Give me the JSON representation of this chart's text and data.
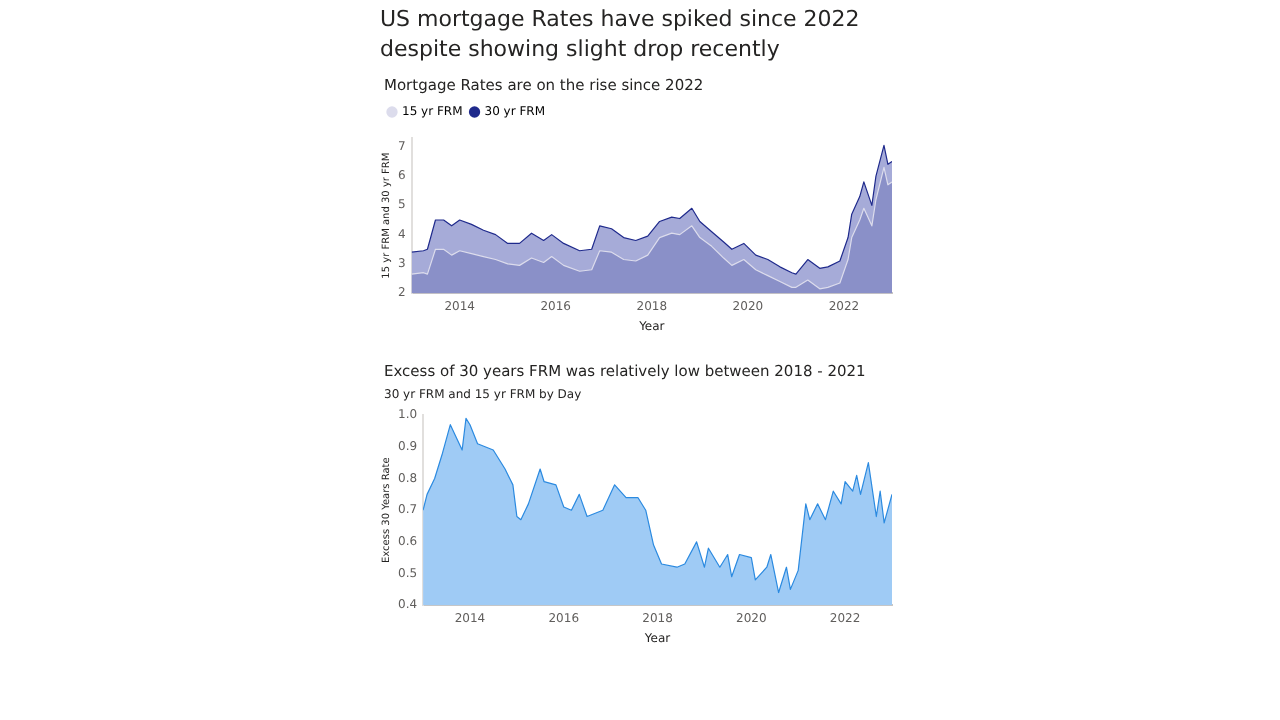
{
  "chart_data": [
    {
      "type": "area",
      "title": "US mortgage Rates have spiked since 2022 despite showing slight drop recently",
      "subtitle": "Mortgage Rates are on the rise since 2022",
      "xlabel": "Year",
      "ylabel": "15 yr FRM and 30 yr FRM",
      "x": [
        "2013-01",
        "2013-04",
        "2013-05",
        "2013-07",
        "2013-09",
        "2013-11",
        "2014-01",
        "2014-04",
        "2014-07",
        "2014-10",
        "2015-01",
        "2015-04",
        "2015-07",
        "2015-10",
        "2015-12",
        "2016-03",
        "2016-07",
        "2016-10",
        "2016-12",
        "2017-03",
        "2017-06",
        "2017-09",
        "2017-12",
        "2018-03",
        "2018-06",
        "2018-08",
        "2018-11",
        "2019-01",
        "2019-04",
        "2019-07",
        "2019-09",
        "2019-12",
        "2020-03",
        "2020-06",
        "2020-09",
        "2020-12",
        "2021-01",
        "2021-04",
        "2021-07",
        "2021-09",
        "2021-12",
        "2022-02",
        "2022-03",
        "2022-05",
        "2022-06",
        "2022-08",
        "2022-09",
        "2022-11",
        "2022-12",
        "2023-01"
      ],
      "series": [
        {
          "name": "15 yr FRM",
          "color": "#dcdcec",
          "values": [
            2.65,
            2.7,
            2.65,
            3.5,
            3.5,
            3.3,
            3.45,
            3.35,
            3.25,
            3.15,
            3.0,
            2.95,
            3.2,
            3.05,
            3.25,
            2.95,
            2.75,
            2.8,
            3.45,
            3.4,
            3.15,
            3.1,
            3.3,
            3.9,
            4.05,
            4.0,
            4.3,
            3.9,
            3.6,
            3.2,
            2.95,
            3.15,
            2.8,
            2.6,
            2.4,
            2.2,
            2.2,
            2.45,
            2.15,
            2.2,
            2.35,
            3.15,
            3.9,
            4.5,
            4.9,
            4.3,
            5.2,
            6.3,
            5.7,
            5.8
          ]
        },
        {
          "name": "30 yr FRM",
          "color": "#1f2a8c",
          "values": [
            3.4,
            3.45,
            3.5,
            4.5,
            4.5,
            4.3,
            4.5,
            4.35,
            4.15,
            4.0,
            3.7,
            3.7,
            4.05,
            3.8,
            4.0,
            3.7,
            3.45,
            3.5,
            4.3,
            4.2,
            3.9,
            3.8,
            3.95,
            4.45,
            4.6,
            4.55,
            4.9,
            4.45,
            4.1,
            3.75,
            3.5,
            3.7,
            3.3,
            3.15,
            2.9,
            2.7,
            2.65,
            3.15,
            2.85,
            2.9,
            3.1,
            3.9,
            4.7,
            5.3,
            5.8,
            5.0,
            6.0,
            7.05,
            6.4,
            6.5
          ]
        }
      ],
      "xlim": [
        "2013-01",
        "2023-01"
      ],
      "xticks": [
        "2014",
        "2016",
        "2018",
        "2020",
        "2022"
      ],
      "ylim": [
        2,
        7.3
      ],
      "yticks": [
        2,
        3,
        4,
        5,
        6,
        7
      ],
      "legend": "top left",
      "grid": false,
      "marker": "none"
    },
    {
      "type": "area",
      "title": "Excess of 30 years FRM was relatively low between 2018 - 2021",
      "subtitle": "30 yr FRM and 15 yr FRM by Day",
      "xlabel": "Year",
      "ylabel": "Excess 30 Years Rate",
      "x": [
        "2013-01",
        "2013-02",
        "2013-04",
        "2013-06",
        "2013-08",
        "2013-11",
        "2013-12",
        "2014-01",
        "2014-03",
        "2014-07",
        "2014-10",
        "2014-12",
        "2015-01",
        "2015-02",
        "2015-04",
        "2015-07",
        "2015-08",
        "2015-11",
        "2016-01",
        "2016-03",
        "2016-05",
        "2016-07",
        "2016-11",
        "2017-02",
        "2017-05",
        "2017-08",
        "2017-10",
        "2017-12",
        "2018-02",
        "2018-06",
        "2018-08",
        "2018-11",
        "2019-01",
        "2019-02",
        "2019-05",
        "2019-07",
        "2019-08",
        "2019-10",
        "2020-01",
        "2020-02",
        "2020-05",
        "2020-06",
        "2020-08",
        "2020-10",
        "2020-11",
        "2021-01",
        "2021-03",
        "2021-04",
        "2021-06",
        "2021-08",
        "2021-10",
        "2021-12",
        "2022-01",
        "2022-03",
        "2022-04",
        "2022-05",
        "2022-07",
        "2022-09",
        "2022-10",
        "2022-11",
        "2023-01"
      ],
      "values": [
        0.7,
        0.75,
        0.8,
        0.88,
        0.97,
        0.89,
        0.99,
        0.97,
        0.91,
        0.89,
        0.83,
        0.78,
        0.68,
        0.67,
        0.72,
        0.83,
        0.79,
        0.78,
        0.71,
        0.7,
        0.75,
        0.68,
        0.7,
        0.78,
        0.74,
        0.74,
        0.7,
        0.59,
        0.53,
        0.52,
        0.53,
        0.6,
        0.52,
        0.58,
        0.52,
        0.56,
        0.49,
        0.56,
        0.55,
        0.48,
        0.52,
        0.56,
        0.44,
        0.52,
        0.45,
        0.51,
        0.72,
        0.67,
        0.72,
        0.67,
        0.76,
        0.72,
        0.79,
        0.76,
        0.81,
        0.75,
        0.85,
        0.68,
        0.76,
        0.66,
        0.75
      ],
      "color": "#2b8ae0",
      "xlim": [
        "2013-01",
        "2023-01"
      ],
      "xticks": [
        "2014",
        "2016",
        "2018",
        "2020",
        "2022"
      ],
      "ylim": [
        0.4,
        1.0
      ],
      "yticks": [
        0.4,
        0.5,
        0.6,
        0.7,
        0.8,
        0.9,
        {
          "value": 1,
          "label": "1.0"
        }
      ],
      "legend": false,
      "grid": false,
      "marker": "none"
    }
  ]
}
